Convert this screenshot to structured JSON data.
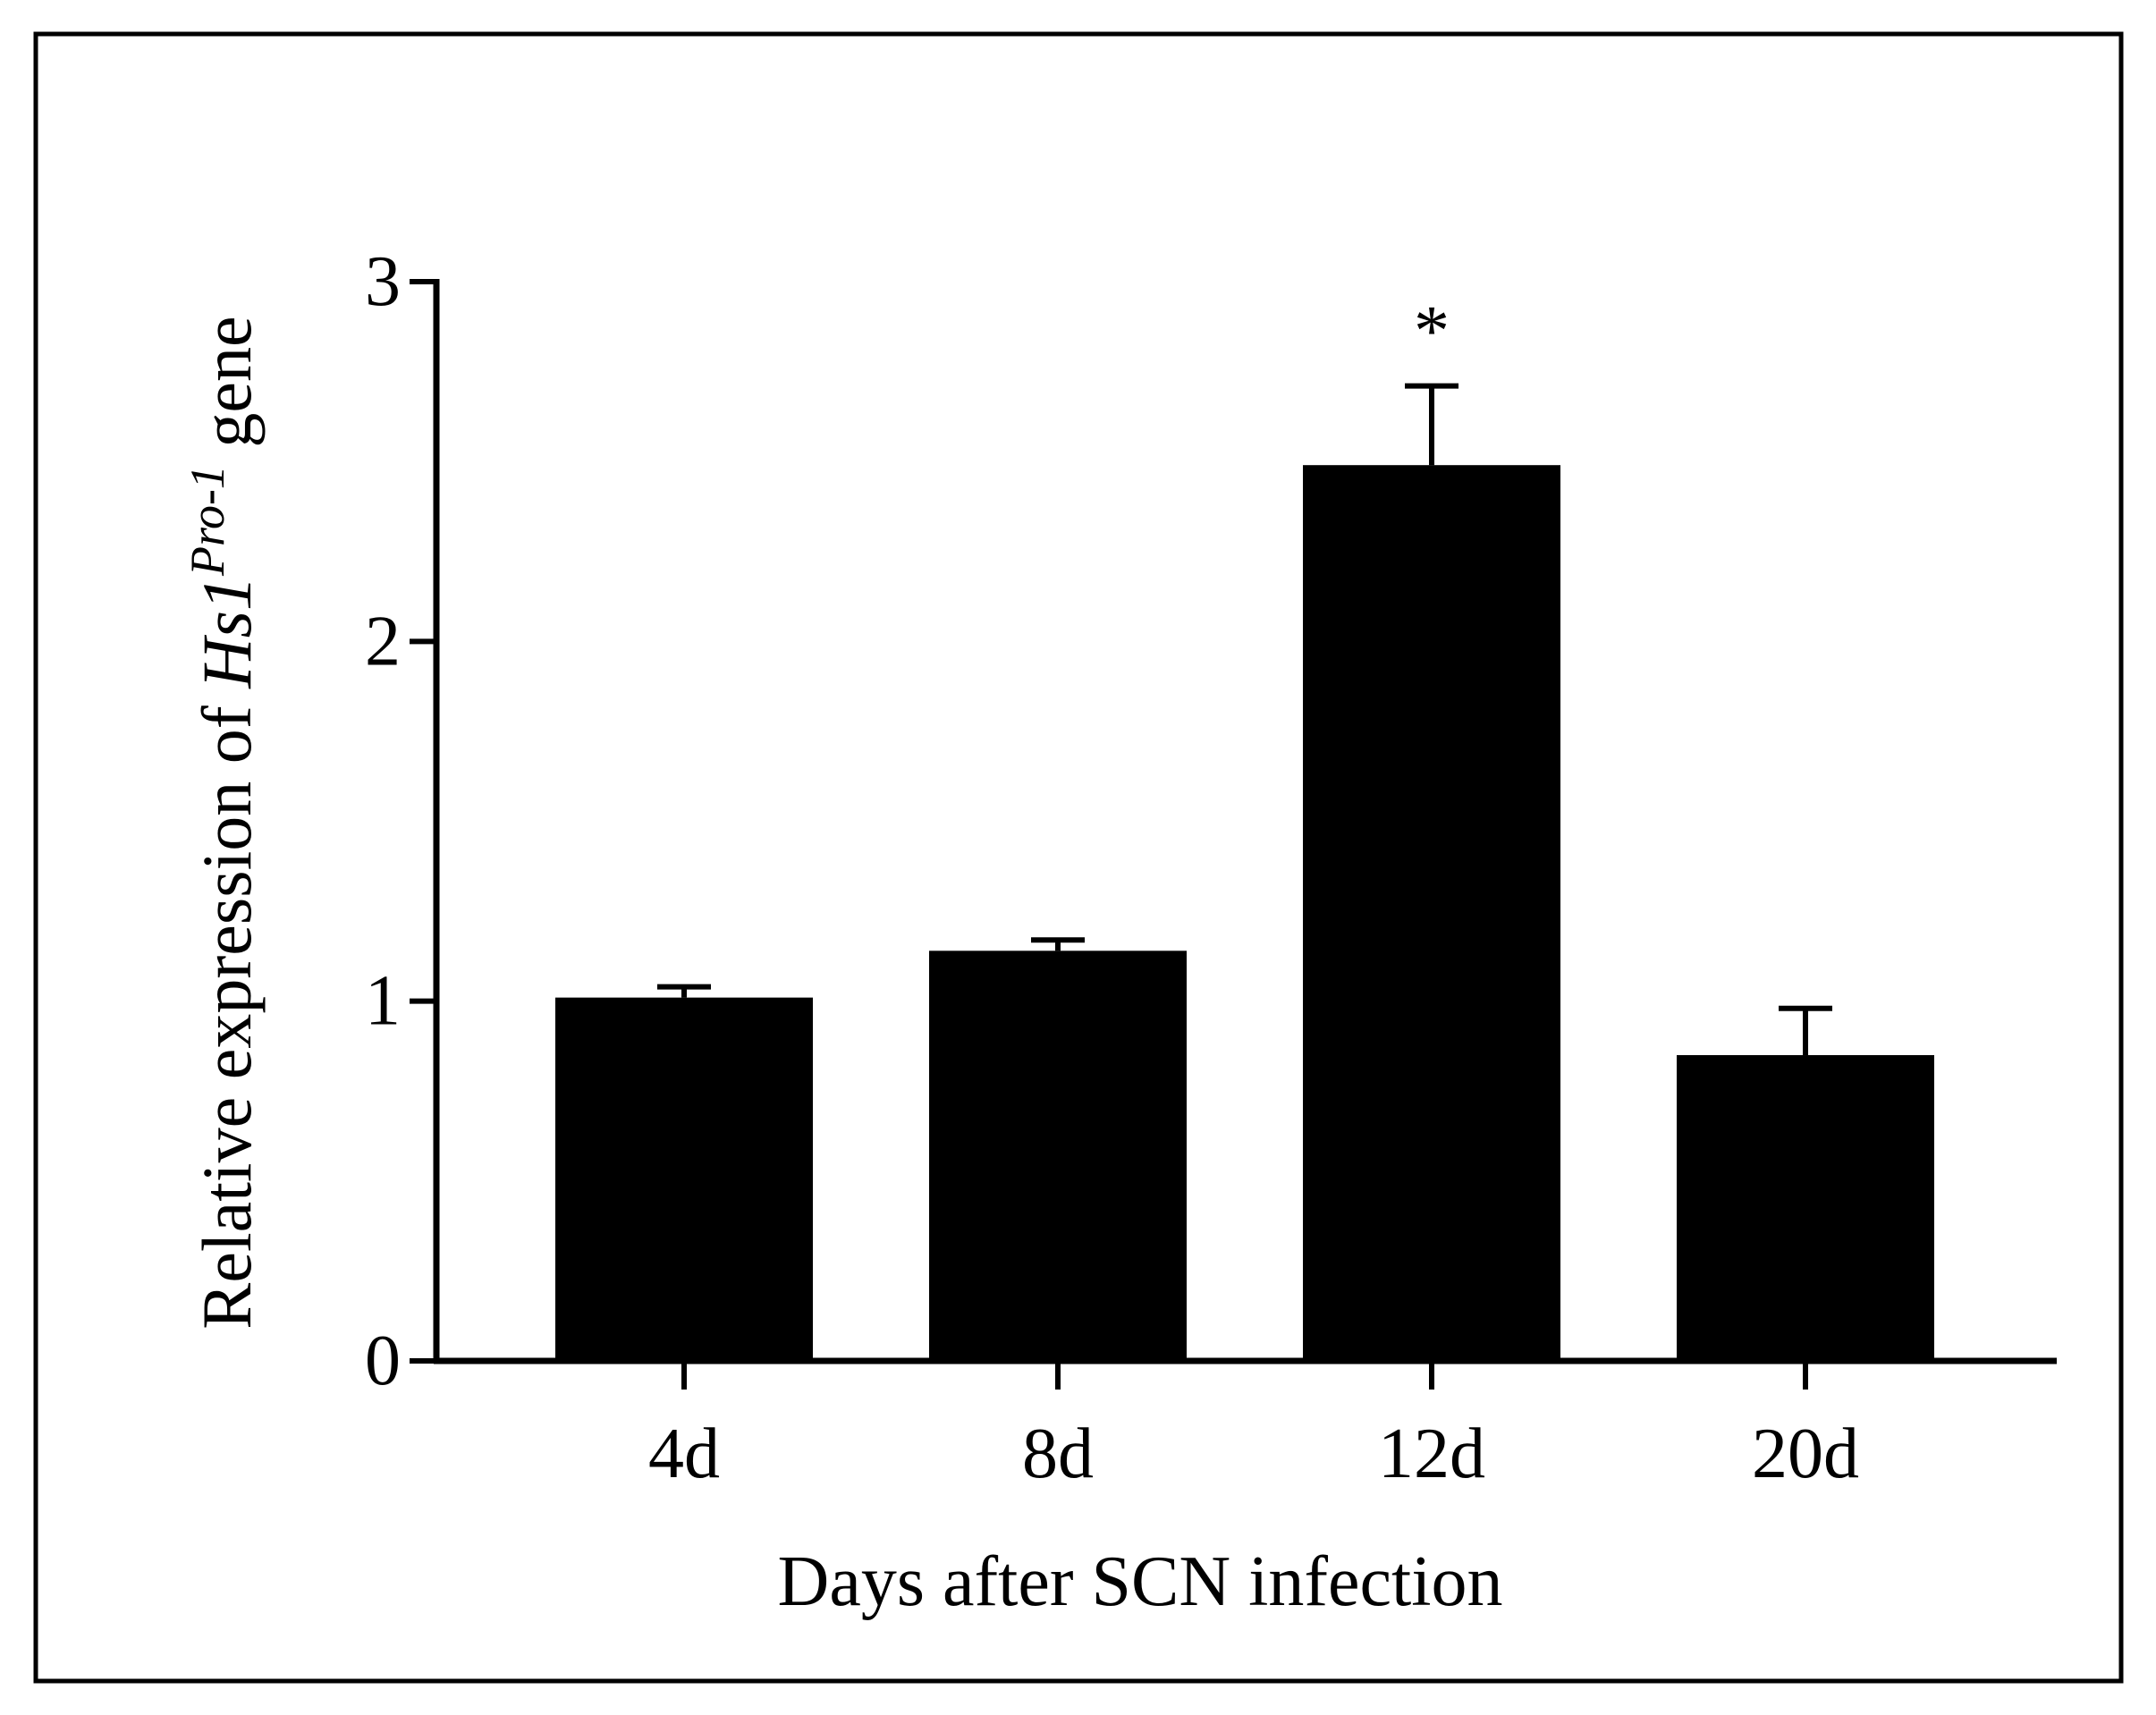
{
  "chart_data": {
    "type": "bar",
    "categories": [
      "4d",
      "8d",
      "12d",
      "20d"
    ],
    "values": [
      1.01,
      1.14,
      2.49,
      0.85
    ],
    "errors": [
      0.03,
      0.03,
      0.22,
      0.13
    ],
    "annotations": [
      "",
      "",
      "*",
      ""
    ],
    "xlabel": "Days after SCN infection",
    "ylabel": {
      "prefix": "Relative expression of ",
      "gene": "Hs1",
      "superscript": "Pro-1",
      "suffix": " gene"
    },
    "yticks": [
      "0",
      "1",
      "2",
      "3"
    ],
    "ylim": [
      0,
      3
    ],
    "grid": false,
    "legend": "none",
    "bar_color": "#000000"
  }
}
